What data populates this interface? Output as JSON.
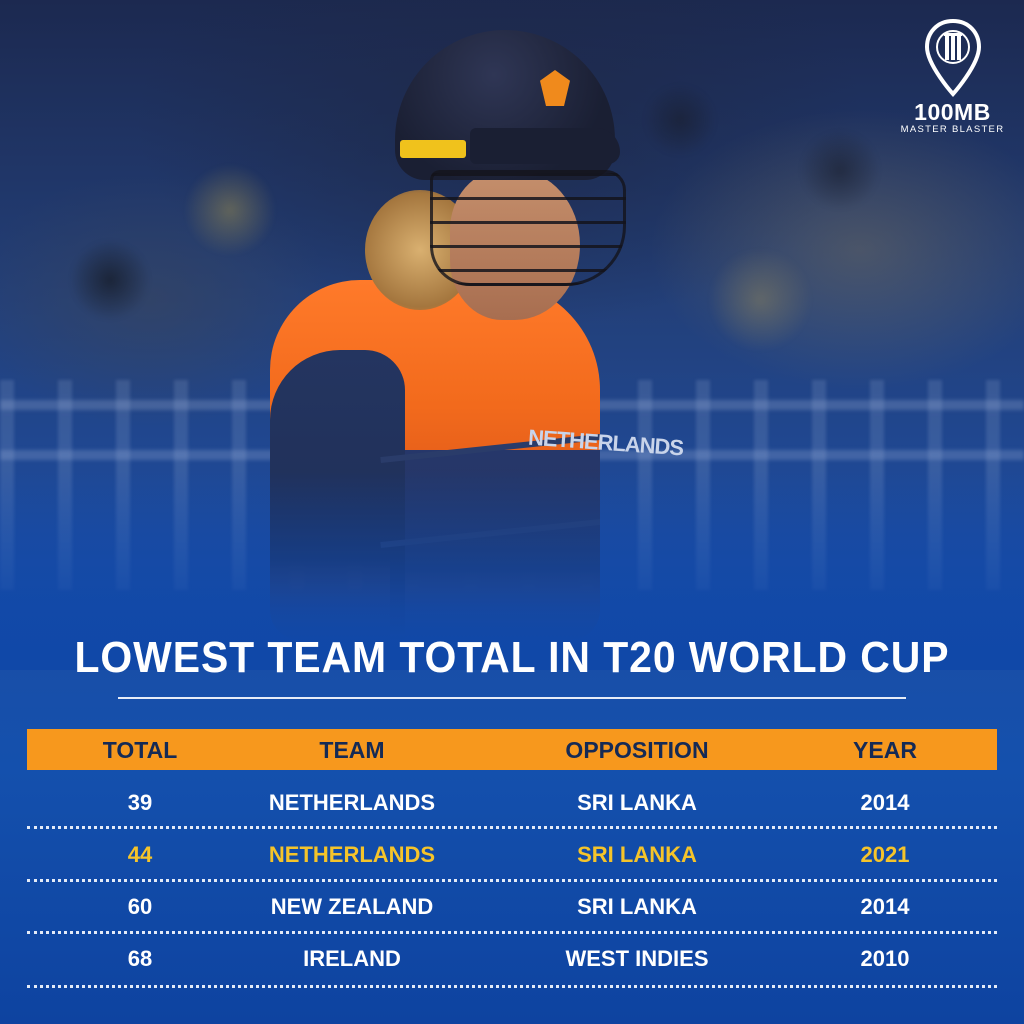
{
  "brand": {
    "name": "100MB",
    "tagline": "MASTER BLASTER"
  },
  "jersey_text": "NETHERLANDS",
  "title": "LOWEST TEAM TOTAL IN T20 WORLD CUP",
  "table": {
    "headers": [
      "TOTAL",
      "TEAM",
      "OPPOSITION",
      "YEAR"
    ],
    "rows": [
      {
        "total": "39",
        "team": "NETHERLANDS",
        "opposition": "SRI LANKA",
        "year": "2014",
        "highlight": false
      },
      {
        "total": "44",
        "team": "NETHERLANDS",
        "opposition": "SRI LANKA",
        "year": "2021",
        "highlight": true
      },
      {
        "total": "60",
        "team": "NEW ZEALAND",
        "opposition": "SRI LANKA",
        "year": "2014",
        "highlight": false
      },
      {
        "total": "68",
        "team": "IRELAND",
        "opposition": "WEST INDIES",
        "year": "2010",
        "highlight": false
      }
    ]
  },
  "colors": {
    "background_blue": "#1048a8",
    "header_orange": "#f7981d",
    "header_text": "#152a55",
    "highlight_text": "#f5c42a",
    "body_text": "#ffffff"
  }
}
